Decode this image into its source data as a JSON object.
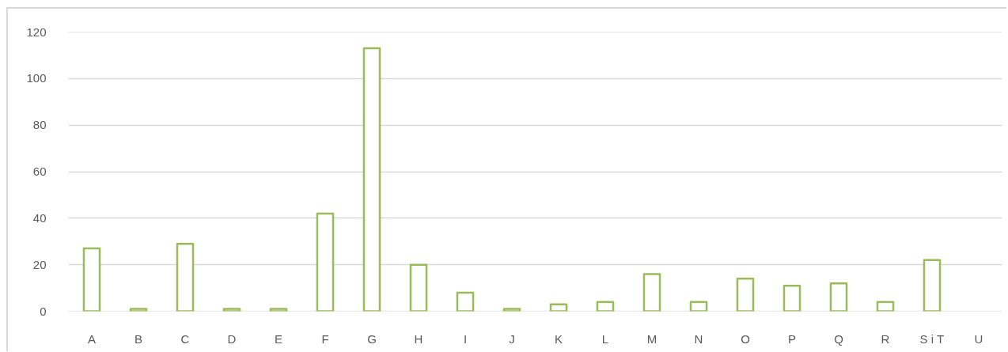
{
  "chart_data": {
    "type": "bar",
    "categories": [
      "A",
      "B",
      "C",
      "D",
      "E",
      "F",
      "G",
      "H",
      "I",
      "J",
      "K",
      "L",
      "M",
      "N",
      "O",
      "P",
      "Q",
      "R",
      "S i T",
      "U"
    ],
    "values": [
      27,
      1,
      29,
      1,
      1,
      42,
      113,
      20,
      8,
      1,
      3,
      4,
      16,
      4,
      14,
      11,
      12,
      4,
      22,
      null
    ],
    "color": "#9bbb59",
    "ylim": [
      0,
      120
    ],
    "yticks": [
      0,
      20,
      40,
      60,
      80,
      100,
      120
    ],
    "grid": "y"
  }
}
